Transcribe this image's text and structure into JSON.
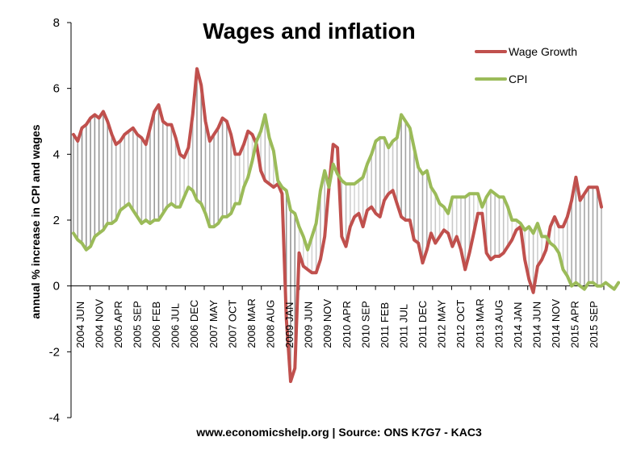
{
  "chart_data": {
    "type": "line",
    "title": "Wages and inflation",
    "ylabel": "annual % increase in CPI and wages",
    "source": "www.economicshelp.org | Source: ONS K7G7 - KAC3",
    "ylim": [
      -4,
      8
    ],
    "yticks": [
      -4,
      -2,
      0,
      2,
      4,
      6,
      8
    ],
    "grid": false,
    "legend_position": "top-right",
    "x_start": "2004 JUN",
    "x_end": "2015 OCT",
    "x_tick_labels": [
      "2004 JUN",
      "2004 NOV",
      "2005 APR",
      "2005 SEP",
      "2006 FEB",
      "2006 JUL",
      "2006 DEC",
      "2007 MAY",
      "2007 OCT",
      "2008 MAR",
      "2008 AUG",
      "2009 JAN",
      "2009 JUN",
      "2009 NOV",
      "2010 APR",
      "2010 SEP",
      "2011 FEB",
      "2011 JUL",
      "2011 DEC",
      "2012 MAY",
      "2012 OCT",
      "2013 MAR",
      "2013 AUG",
      "2014 JAN",
      "2014 JUN",
      "2014 NOV",
      "2015 APR",
      "2015 SEP"
    ],
    "series": [
      {
        "name": "Wage Growth",
        "color": "#c0504d",
        "values": [
          4.6,
          4.4,
          4.8,
          4.9,
          5.1,
          5.2,
          5.1,
          5.3,
          5.0,
          4.6,
          4.3,
          4.4,
          4.6,
          4.7,
          4.8,
          4.6,
          4.5,
          4.3,
          4.8,
          5.3,
          5.5,
          5.0,
          4.9,
          4.9,
          4.5,
          4.0,
          3.9,
          4.2,
          5.2,
          6.6,
          6.1,
          5.0,
          4.4,
          4.6,
          4.8,
          5.1,
          5.0,
          4.6,
          4.0,
          4.0,
          4.3,
          4.7,
          4.6,
          4.3,
          3.5,
          3.2,
          3.1,
          3.0,
          3.1,
          2.8,
          -1.0,
          -2.9,
          -2.5,
          1.0,
          0.6,
          0.5,
          0.4,
          0.4,
          0.8,
          1.5,
          3.0,
          4.3,
          4.2,
          1.5,
          1.2,
          1.8,
          2.1,
          2.2,
          1.8,
          2.3,
          2.4,
          2.2,
          2.1,
          2.6,
          2.8,
          2.9,
          2.5,
          2.1,
          2.0,
          2.0,
          1.4,
          1.3,
          0.7,
          1.1,
          1.6,
          1.3,
          1.5,
          1.7,
          1.6,
          1.2,
          1.5,
          1.1,
          0.5,
          1.0,
          1.6,
          2.2,
          2.2,
          1.0,
          0.8,
          0.9,
          0.9,
          1.0,
          1.2,
          1.4,
          1.7,
          1.8,
          0.8,
          0.2,
          -0.2,
          0.6,
          0.8,
          1.1,
          1.8,
          2.1,
          1.8,
          1.8,
          2.1,
          2.6,
          3.3,
          2.6,
          2.8,
          3.0,
          3.0,
          3.0,
          2.4
        ]
      },
      {
        "name": "CPI",
        "color": "#9bbb59",
        "values": [
          1.6,
          1.4,
          1.3,
          1.1,
          1.2,
          1.5,
          1.6,
          1.7,
          1.9,
          1.9,
          2.0,
          2.3,
          2.4,
          2.5,
          2.3,
          2.1,
          1.9,
          2.0,
          1.9,
          2.0,
          2.0,
          2.2,
          2.4,
          2.5,
          2.4,
          2.4,
          2.7,
          3.0,
          2.9,
          2.6,
          2.5,
          2.2,
          1.8,
          1.8,
          1.9,
          2.1,
          2.1,
          2.2,
          2.5,
          2.5,
          3.0,
          3.3,
          3.8,
          4.4,
          4.7,
          5.2,
          4.5,
          4.1,
          3.2,
          3.0,
          2.9,
          2.3,
          2.2,
          1.8,
          1.5,
          1.1,
          1.5,
          1.9,
          2.9,
          3.5,
          3.0,
          3.7,
          3.4,
          3.2,
          3.1,
          3.1,
          3.1,
          3.2,
          3.3,
          3.7,
          4.0,
          4.4,
          4.5,
          4.5,
          4.2,
          4.4,
          4.5,
          5.2,
          5.0,
          4.8,
          4.2,
          3.6,
          3.4,
          3.5,
          3.0,
          2.8,
          2.5,
          2.4,
          2.2,
          2.7,
          2.7,
          2.7,
          2.7,
          2.8,
          2.8,
          2.8,
          2.4,
          2.7,
          2.9,
          2.8,
          2.7,
          2.7,
          2.4,
          2.0,
          2.0,
          1.9,
          1.7,
          1.8,
          1.6,
          1.9,
          1.5,
          1.5,
          1.3,
          1.2,
          1.0,
          0.5,
          0.3,
          0.0,
          0.1,
          0.0,
          -0.1,
          0.1,
          0.1,
          0.0,
          0.0,
          0.1,
          0.0,
          -0.1,
          0.1
        ]
      }
    ]
  }
}
